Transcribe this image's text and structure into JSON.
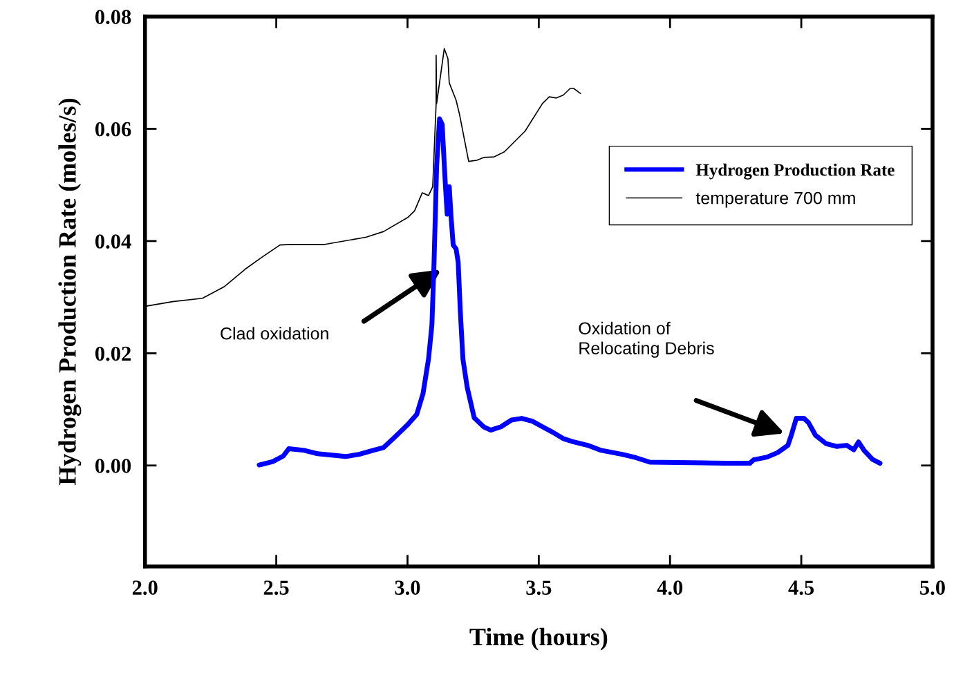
{
  "chart_data": {
    "type": "line",
    "xlabel": "Time (hours)",
    "ylabel": "Hydrogen Production Rate (moles/s)",
    "xlim": [
      2.0,
      5.0
    ],
    "ylim": [
      -0.018,
      0.08
    ],
    "xticks": [
      {
        "value": 2.0,
        "label": "2.0"
      },
      {
        "value": 2.5,
        "label": "2.5"
      },
      {
        "value": 3.0,
        "label": "3.0"
      },
      {
        "value": 3.5,
        "label": "3.5"
      },
      {
        "value": 4.0,
        "label": "4.0"
      },
      {
        "value": 4.5,
        "label": "4.5"
      },
      {
        "value": 5.0,
        "label": "5.0"
      }
    ],
    "yticks": [
      {
        "value": 0.0,
        "label": "0.00"
      },
      {
        "value": 0.02,
        "label": "0.02"
      },
      {
        "value": 0.04,
        "label": "0.04"
      },
      {
        "value": 0.06,
        "label": "0.06"
      },
      {
        "value": 0.08,
        "label": "0.08"
      }
    ],
    "grid": false,
    "legend": "top right",
    "marker": "none",
    "line_style": "solid",
    "series": [
      {
        "name": "Hydrogen Production Rate",
        "color": "#0000ff",
        "x": [
          2.435,
          2.487,
          2.527,
          2.548,
          2.606,
          2.658,
          2.764,
          2.816,
          2.869,
          2.909,
          2.948,
          3.001,
          3.035,
          3.059,
          3.08,
          3.093,
          3.101,
          3.111,
          3.122,
          3.132,
          3.143,
          3.151,
          3.159,
          3.166,
          3.174,
          3.185,
          3.193,
          3.201,
          3.211,
          3.227,
          3.254,
          3.29,
          3.317,
          3.356,
          3.396,
          3.435,
          3.475,
          3.514,
          3.554,
          3.593,
          3.633,
          3.686,
          3.738,
          3.817,
          3.87,
          3.923,
          4.081,
          4.212,
          4.304,
          4.318,
          4.37,
          4.41,
          4.449,
          4.462,
          4.481,
          4.51,
          4.528,
          4.554,
          4.594,
          4.634,
          4.673,
          4.7,
          4.718,
          4.739,
          4.771,
          4.8
        ],
        "values": [
          0.0001,
          0.0007,
          0.0017,
          0.003,
          0.0027,
          0.0021,
          0.0016,
          0.002,
          0.0027,
          0.0032,
          0.0049,
          0.0073,
          0.0091,
          0.0128,
          0.019,
          0.0251,
          0.0362,
          0.0534,
          0.0618,
          0.0608,
          0.051,
          0.0448,
          0.0497,
          0.0442,
          0.0393,
          0.0386,
          0.0362,
          0.0276,
          0.019,
          0.014,
          0.0085,
          0.0069,
          0.0063,
          0.0069,
          0.0081,
          0.0084,
          0.0079,
          0.0069,
          0.0059,
          0.0048,
          0.0042,
          0.0036,
          0.0027,
          0.002,
          0.0014,
          0.0006,
          0.0005,
          0.0004,
          0.0004,
          0.001,
          0.0015,
          0.0023,
          0.0036,
          0.0054,
          0.0084,
          0.0084,
          0.0076,
          0.0054,
          0.0039,
          0.0034,
          0.0036,
          0.0028,
          0.0042,
          0.0027,
          0.0011,
          0.0004
        ]
      },
      {
        "name": "temperature 700 mm",
        "color": "#000000",
        "x": [
          2.005,
          2.105,
          2.219,
          2.303,
          2.382,
          2.448,
          2.514,
          2.553,
          2.685,
          2.843,
          2.909,
          3.001,
          3.027,
          3.056,
          3.08,
          3.096,
          3.109,
          3.109,
          3.111,
          3.14,
          3.154,
          3.159,
          3.185,
          3.198,
          3.233,
          3.264,
          3.29,
          3.33,
          3.369,
          3.448,
          3.514,
          3.54,
          3.567,
          3.593,
          3.62,
          3.633,
          3.659
        ],
        "values": [
          0.0284,
          0.0292,
          0.0298,
          0.0319,
          0.035,
          0.0372,
          0.0393,
          0.0394,
          0.0394,
          0.0407,
          0.0417,
          0.0442,
          0.0454,
          0.0486,
          0.0481,
          0.0497,
          0.0645,
          0.0731,
          0.0645,
          0.0743,
          0.0725,
          0.0682,
          0.0651,
          0.0626,
          0.0542,
          0.0544,
          0.0549,
          0.055,
          0.0559,
          0.0596,
          0.0645,
          0.0657,
          0.0655,
          0.066,
          0.0672,
          0.0672,
          0.0663
        ]
      }
    ],
    "annotations": [
      "Clad oxidation",
      "Oxidation of\nRelocating Debris"
    ]
  }
}
